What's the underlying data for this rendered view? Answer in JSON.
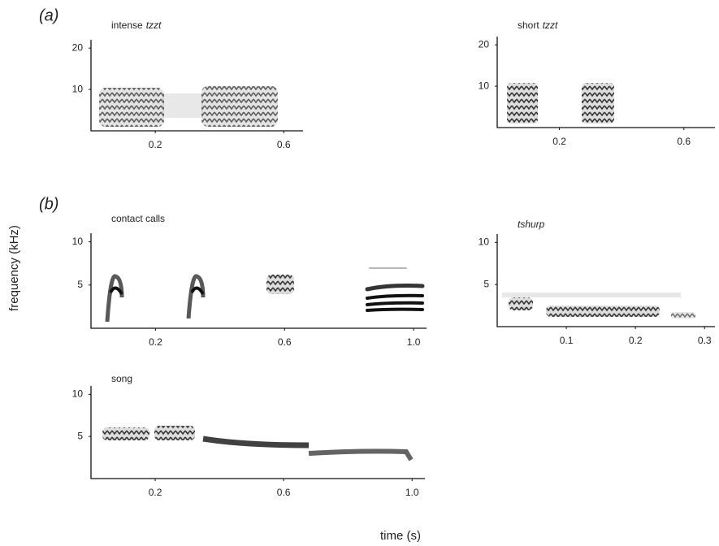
{
  "figure": {
    "panel_labels": [
      "(a)",
      "(b)"
    ],
    "y_label": "frequency (kHz)",
    "x_label": "time (s)"
  },
  "chart_data": [
    {
      "type": "spectrogram",
      "title": [
        {
          "text": "intense"
        },
        {
          "text": "tzzt",
          "italic": true
        }
      ],
      "xlim": [
        0,
        0.66
      ],
      "ylim": [
        0,
        22
      ],
      "xticks": [
        0.2,
        0.6
      ],
      "yticks": [
        10,
        20
      ]
    },
    {
      "type": "spectrogram",
      "title": [
        {
          "text": "short"
        },
        {
          "text": "tzzt",
          "italic": true
        }
      ],
      "xlim": [
        0,
        0.7
      ],
      "ylim": [
        0,
        22
      ],
      "xticks": [
        0.2,
        0.6
      ],
      "yticks": [
        10,
        20
      ]
    },
    {
      "type": "spectrogram",
      "title": [
        {
          "text": "contact calls"
        }
      ],
      "xlim": [
        0,
        1.04
      ],
      "ylim": [
        0,
        11
      ],
      "xticks": [
        0.2,
        0.6,
        {
          "value": 1.0,
          "label": "1.0"
        }
      ],
      "yticks": [
        5,
        10
      ]
    },
    {
      "type": "spectrogram",
      "title": [
        {
          "text": "tshurp",
          "italic": true
        }
      ],
      "xlim": [
        0,
        0.315
      ],
      "ylim": [
        0,
        11
      ],
      "xticks": [
        0.1,
        0.2,
        0.3
      ],
      "yticks": [
        5,
        10
      ]
    },
    {
      "type": "spectrogram",
      "title": [
        {
          "text": "song"
        }
      ],
      "xlim": [
        0,
        1.04
      ],
      "ylim": [
        0,
        11
      ],
      "xticks": [
        0.2,
        0.6,
        {
          "value": 1.0,
          "label": "1.0"
        }
      ],
      "yticks": [
        5,
        10
      ]
    }
  ]
}
